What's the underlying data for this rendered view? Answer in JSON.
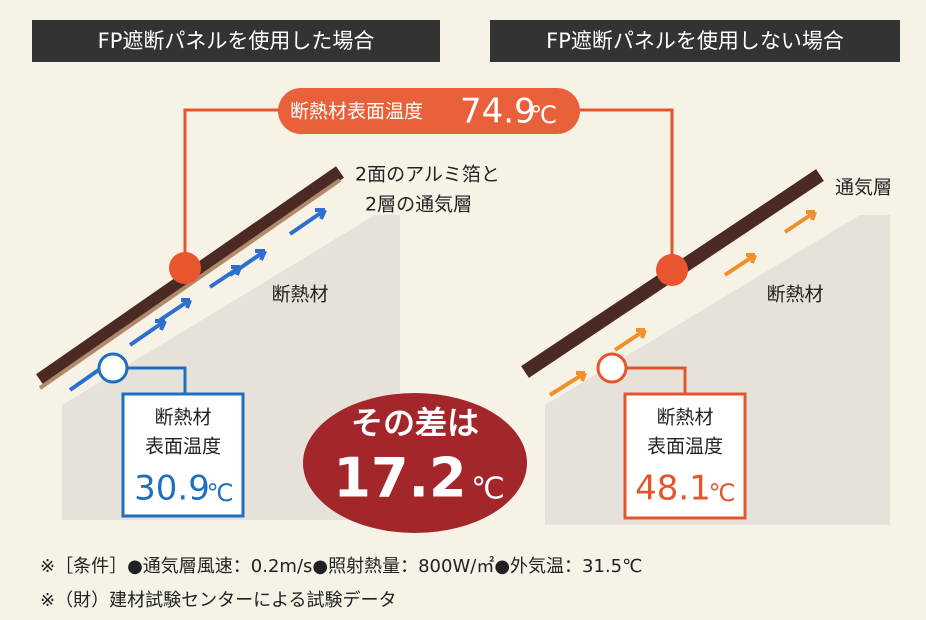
{
  "panels": [
    {
      "title": "FP遮断パネルを使用した場合",
      "annotation": [
        "2面のアルミ箔と",
        "2層の通気層"
      ],
      "insulation_label": "断熱材",
      "box": {
        "line1": "断熱材",
        "line2": "表面温度",
        "value": 30.9,
        "unit": "℃"
      }
    },
    {
      "title": "FP遮断パネルを使用しない場合",
      "annotation": [
        "通気層"
      ],
      "insulation_label": "断熱材",
      "box": {
        "line1": "断熱材",
        "line2": "表面温度",
        "value": 48.1,
        "unit": "℃"
      }
    }
  ],
  "top_callout": {
    "label": "断熱材表面温度",
    "value": 74.9,
    "unit": "℃"
  },
  "difference": {
    "label": "その差は",
    "value": 17.2,
    "unit": "℃"
  },
  "notes": [
    "※［条件］●通気層風速：0.2m/s●照射熱量：800W/㎡●外気温：31.5℃",
    "※（財）建材試験センターによる試験データ"
  ]
}
